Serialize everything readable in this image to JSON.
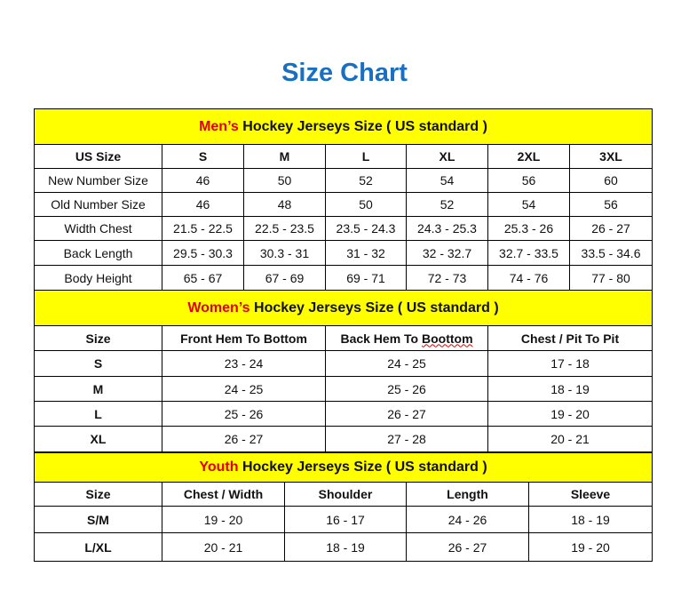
{
  "title": "Size Chart",
  "colors": {
    "title": "#1a70c0",
    "header_bg": "#ffff00",
    "highlight": "#e00000"
  },
  "men": {
    "header_highlight": "Men’s",
    "header_rest": " Hockey Jerseys Size ( US standard )",
    "columns": [
      "US Size",
      "S",
      "M",
      "L",
      "XL",
      "2XL",
      "3XL"
    ],
    "rows": [
      [
        "New Number Size",
        "46",
        "50",
        "52",
        "54",
        "56",
        "60"
      ],
      [
        "Old Number Size",
        "46",
        "48",
        "50",
        "52",
        "54",
        "56"
      ],
      [
        "Width Chest",
        "21.5 - 22.5",
        "22.5 - 23.5",
        "23.5 - 24.3",
        "24.3 - 25.3",
        "25.3 - 26",
        "26 - 27"
      ],
      [
        "Back Length",
        "29.5 - 30.3",
        "30.3 - 31",
        "31 - 32",
        "32 - 32.7",
        "32.7 - 33.5",
        "33.5 - 34.6"
      ],
      [
        "Body Height",
        "65 - 67",
        "67 - 69",
        "69 - 71",
        "72 - 73",
        "74 - 76",
        "77 - 80"
      ]
    ]
  },
  "women": {
    "header_highlight": "Women’s",
    "header_rest": " Hockey Jerseys Size ( US standard )",
    "columns": [
      "Size",
      "Front Hem To Bottom",
      "Back Hem To ",
      "Chest / Pit To Pit"
    ],
    "columns_misspelled_word": "Boottom",
    "rows": [
      [
        "S",
        "23 - 24",
        "24 - 25",
        "17 - 18"
      ],
      [
        "M",
        "24 - 25",
        "25 - 26",
        "18 - 19"
      ],
      [
        "L",
        "25 - 26",
        "26 - 27",
        "19 - 20"
      ],
      [
        "XL",
        "26 - 27",
        "27 - 28",
        "20 - 21"
      ]
    ]
  },
  "youth": {
    "header_highlight": "Youth",
    "header_rest": " Hockey Jerseys Size ( US standard )",
    "columns": [
      "Size",
      "Chest / Width",
      "Shoulder",
      "Length",
      "Sleeve"
    ],
    "rows": [
      [
        "S/M",
        "19 - 20",
        "16 - 17",
        "24 - 26",
        "18 - 19"
      ],
      [
        "L/XL",
        "20 - 21",
        "18 - 19",
        "26 - 27",
        "19 - 20"
      ]
    ]
  }
}
